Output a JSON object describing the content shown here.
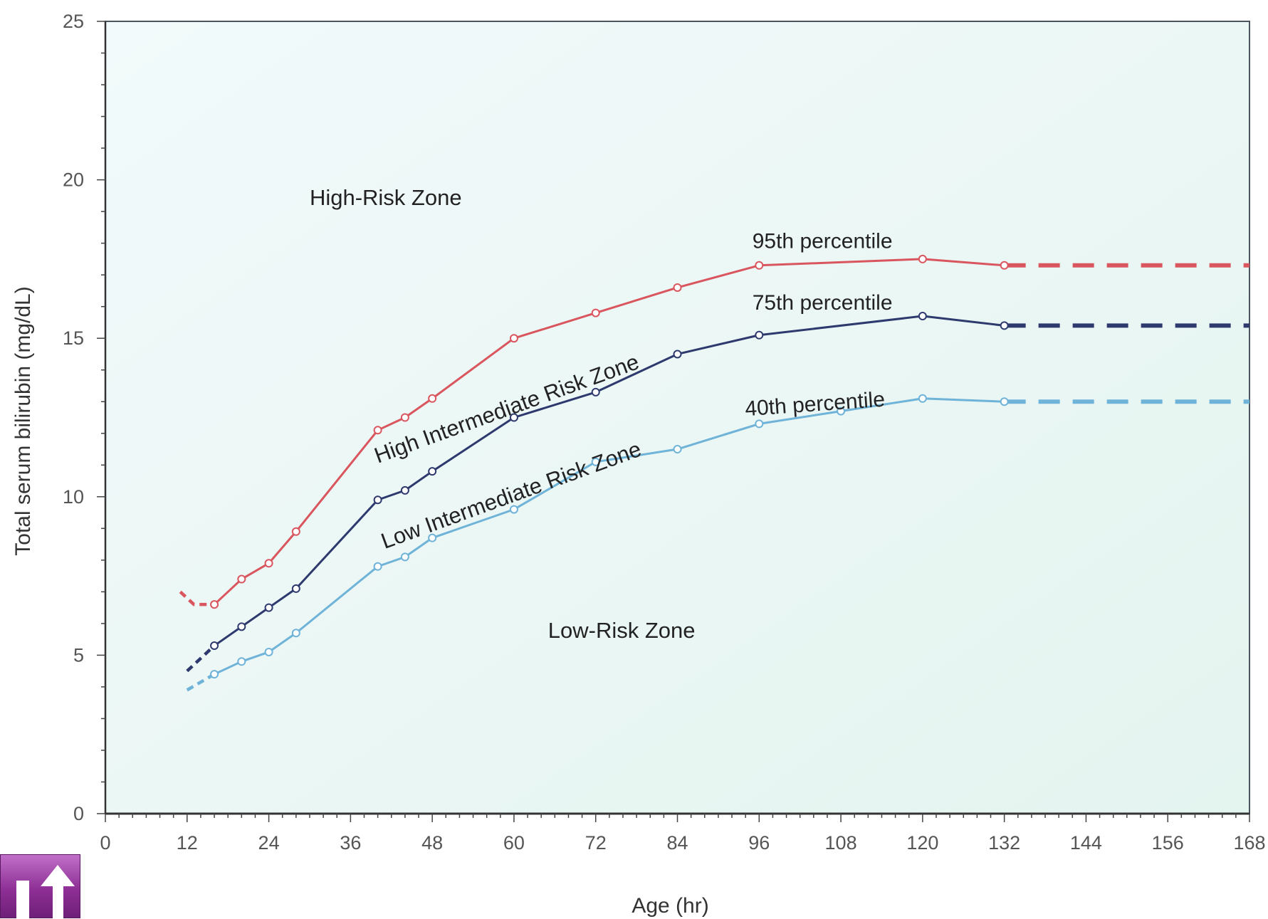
{
  "chart_data": {
    "type": "line",
    "title": "",
    "xlabel": "Age (hr)",
    "ylabel": "Total serum bilirubin (mg/dL)",
    "xlim": [
      0,
      168
    ],
    "ylim": [
      0,
      25
    ],
    "xticks": [
      0,
      12,
      24,
      36,
      48,
      60,
      72,
      84,
      96,
      108,
      120,
      132,
      144,
      156,
      168
    ],
    "yticks": [
      0,
      5,
      10,
      15,
      20,
      25
    ],
    "grid": false,
    "series": [
      {
        "name": "95th percentile",
        "color": "#d9565e",
        "x": [
          11,
          13,
          16,
          20,
          24,
          28,
          40,
          44,
          48,
          60,
          72,
          84,
          96,
          120,
          132
        ],
        "y": [
          7.0,
          6.6,
          6.6,
          7.4,
          7.9,
          8.9,
          12.1,
          12.5,
          13.1,
          15.0,
          15.8,
          16.6,
          17.3,
          17.5,
          17.3
        ],
        "dashed_x": [
          11,
          16
        ],
        "extension": {
          "x": [
            132,
            168
          ],
          "y": [
            17.3,
            17.3
          ]
        }
      },
      {
        "name": "75th percentile",
        "color": "#2e3a6e",
        "x": [
          12,
          16,
          20,
          24,
          28,
          40,
          44,
          48,
          60,
          72,
          84,
          96,
          120,
          132
        ],
        "y": [
          4.5,
          5.3,
          5.9,
          6.5,
          7.1,
          9.9,
          10.2,
          10.8,
          12.5,
          13.3,
          14.5,
          15.1,
          15.7,
          15.4
        ],
        "dashed_x": [
          12,
          16
        ],
        "extension": {
          "x": [
            132,
            168
          ],
          "y": [
            15.4,
            15.4
          ]
        }
      },
      {
        "name": "40th percentile",
        "color": "#6fb3d8",
        "x": [
          12,
          16,
          20,
          24,
          28,
          40,
          44,
          48,
          60,
          72,
          84,
          96,
          108,
          120,
          132
        ],
        "y": [
          3.9,
          4.4,
          4.8,
          5.1,
          5.7,
          7.8,
          8.1,
          8.7,
          9.6,
          11.1,
          11.5,
          12.3,
          12.7,
          13.1,
          13.0
        ],
        "dashed_x": [
          12,
          16
        ],
        "extension": {
          "x": [
            132,
            168
          ],
          "y": [
            13.0,
            13.0
          ]
        }
      }
    ],
    "annotations": [
      {
        "text": "High-Risk Zone",
        "x": 30,
        "y": 19.2,
        "rotate": 0
      },
      {
        "text": "High Intermediate Risk Zone",
        "x": 40,
        "y": 11.05,
        "rotate": -20
      },
      {
        "text": "Low Intermediate Risk Zone",
        "x": 41,
        "y": 8.35,
        "rotate": -20
      },
      {
        "text": "Low-Risk Zone",
        "x": 65,
        "y": 5.55,
        "rotate": 0
      }
    ],
    "series_labels": [
      {
        "text": "95th percentile",
        "x": 95,
        "y": 17.85
      },
      {
        "text": "75th percentile",
        "x": 95,
        "y": 15.9
      },
      {
        "text": "40th percentile",
        "x": 94,
        "y": 12.55,
        "rotate": -4
      }
    ]
  },
  "nav": {
    "icon": "return-arrow-icon",
    "color": "#8e2f96"
  }
}
